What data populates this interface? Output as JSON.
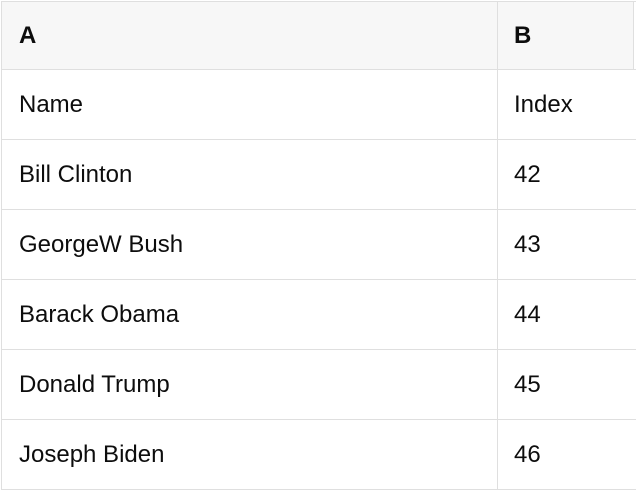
{
  "colors": {
    "header_bg": "#f7f7f7",
    "row_bg": "#ffffff",
    "border": "#dfdfdf",
    "text": "#0d0d0d"
  },
  "table": {
    "header": {
      "a": "A",
      "b": "B"
    },
    "rows": [
      {
        "a": "Name",
        "b": "Index"
      },
      {
        "a": "Bill Clinton",
        "b": "42"
      },
      {
        "a": "GeorgeW Bush",
        "b": "43"
      },
      {
        "a": "Barack Obama",
        "b": "44"
      },
      {
        "a": "Donald Trump",
        "b": "45"
      },
      {
        "a": "Joseph Biden",
        "b": "46"
      }
    ]
  }
}
